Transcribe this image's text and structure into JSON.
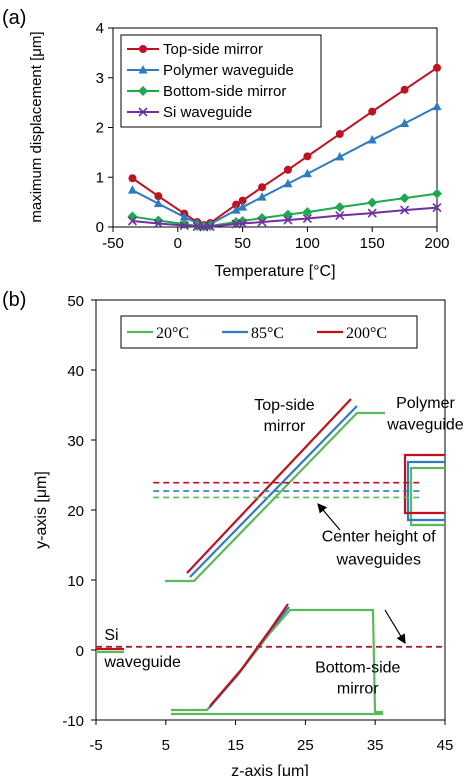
{
  "chart_data": [
    {
      "panel_label": "(a)",
      "type": "line",
      "xlabel": "Temperature [°C]",
      "ylabel": "maximum displacement [μm]",
      "xlim": [
        -50,
        200
      ],
      "ylim": [
        0,
        4
      ],
      "xticks": [
        -50,
        0,
        50,
        100,
        150,
        200
      ],
      "yticks": [
        0,
        1,
        2,
        3,
        4
      ],
      "legend": "top-left",
      "series": [
        {
          "name": "Top-side mirror",
          "color": "#c0111f",
          "marker": "circle",
          "x": [
            -35,
            -15,
            5,
            15,
            20,
            25,
            45,
            50,
            65,
            85,
            100,
            125,
            150,
            175,
            200
          ],
          "y": [
            0.98,
            0.62,
            0.27,
            0.1,
            0.04,
            0.08,
            0.45,
            0.53,
            0.8,
            1.15,
            1.42,
            1.87,
            2.32,
            2.76,
            3.2
          ]
        },
        {
          "name": "Polymer waveguide",
          "color": "#2e7bbf",
          "marker": "triangle",
          "x": [
            -35,
            -15,
            5,
            15,
            20,
            25,
            45,
            50,
            65,
            85,
            100,
            125,
            150,
            175,
            200
          ],
          "y": [
            0.74,
            0.47,
            0.2,
            0.08,
            0.03,
            0.06,
            0.34,
            0.4,
            0.6,
            0.87,
            1.07,
            1.41,
            1.75,
            2.08,
            2.42
          ]
        },
        {
          "name": "Bottom-side mirror",
          "color": "#1fa84f",
          "marker": "diamond",
          "x": [
            -35,
            -15,
            5,
            15,
            20,
            25,
            45,
            50,
            65,
            85,
            100,
            125,
            150,
            175,
            200
          ],
          "y": [
            0.21,
            0.13,
            0.06,
            0.02,
            0.01,
            0.02,
            0.1,
            0.12,
            0.18,
            0.25,
            0.3,
            0.4,
            0.49,
            0.58,
            0.67
          ]
        },
        {
          "name": "Si waveguide",
          "color": "#7030a0",
          "marker": "x",
          "x": [
            -35,
            -15,
            5,
            15,
            20,
            25,
            45,
            50,
            65,
            85,
            100,
            125,
            150,
            175,
            200
          ],
          "y": [
            0.12,
            0.07,
            0.03,
            0.01,
            0.0,
            0.01,
            0.06,
            0.07,
            0.1,
            0.14,
            0.17,
            0.23,
            0.28,
            0.34,
            0.39
          ]
        }
      ]
    },
    {
      "panel_label": "(b)",
      "type": "line",
      "xlabel": "z-axis [μm]",
      "ylabel": "y-axis [μm]",
      "xlim": [
        -5,
        45
      ],
      "ylim": [
        -10,
        50
      ],
      "xticks": [
        -5,
        5,
        15,
        25,
        35,
        45
      ],
      "yticks": [
        -10,
        0,
        10,
        20,
        30,
        40,
        50
      ],
      "legend": "top",
      "series": [
        {
          "name": "20°C",
          "color": "#5cb85c"
        },
        {
          "name": "85°C",
          "color": "#2e7bbf"
        },
        {
          "name": "200°C",
          "color": "#c0111f"
        }
      ],
      "annotations": [
        {
          "text": "Top-side",
          "x": 22,
          "y": 34.3
        },
        {
          "text": "mirror",
          "x": 22,
          "y": 31.3
        },
        {
          "text": "Polymer",
          "x": 42.2,
          "y": 34.6
        },
        {
          "text": "waveguide",
          "x": 42.2,
          "y": 31.5
        },
        {
          "text": "Center height of",
          "x": 35.5,
          "y": 15.5
        },
        {
          "text": "waveguides",
          "x": 35.5,
          "y": 12.2
        },
        {
          "text": "Si",
          "x": -3.8,
          "y": 1.4
        },
        {
          "text": "waveguide",
          "x": -3.8,
          "y": -2.4
        },
        {
          "text": "Bottom-side",
          "x": 32.5,
          "y": -3.2
        },
        {
          "text": "mirror",
          "x": 32.5,
          "y": -6.2
        }
      ],
      "center_heights": [
        {
          "series": "20°C",
          "y": 21.8
        },
        {
          "series": "85°C",
          "y": 22.7
        },
        {
          "series": "200°C",
          "y": 23.9
        }
      ]
    }
  ]
}
